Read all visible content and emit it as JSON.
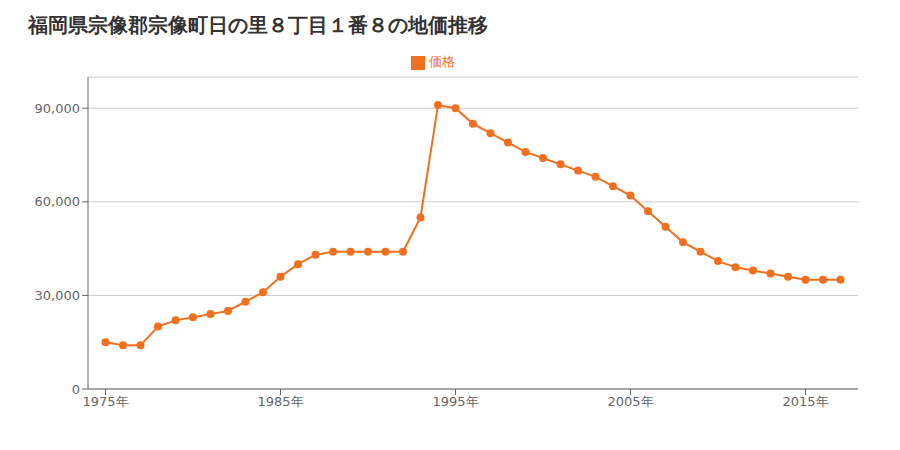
{
  "chart_data": {
    "type": "line",
    "title": "福岡県宗像郡宗像町日の里８丁目１番８の地価推移",
    "x": [
      1975,
      1976,
      1977,
      1978,
      1979,
      1980,
      1981,
      1982,
      1983,
      1984,
      1985,
      1986,
      1987,
      1988,
      1989,
      1990,
      1991,
      1992,
      1993,
      1994,
      1995,
      1996,
      1997,
      1998,
      1999,
      2000,
      2001,
      2002,
      2003,
      2004,
      2005,
      2006,
      2007,
      2008,
      2009,
      2010,
      2011,
      2012,
      2013,
      2014,
      2015,
      2016,
      2017
    ],
    "series": [
      {
        "name": "価格",
        "color": "#f07020",
        "marker": "circle",
        "values": [
          15000,
          14000,
          14000,
          20000,
          22000,
          23000,
          24000,
          25000,
          28000,
          31000,
          36000,
          40000,
          43000,
          44000,
          44000,
          44000,
          44000,
          44000,
          55000,
          91000,
          90000,
          85000,
          82000,
          79000,
          76000,
          74000,
          72000,
          70000,
          68000,
          65000,
          62000,
          57000,
          52000,
          47000,
          44000,
          41000,
          39000,
          38000,
          37000,
          36000,
          35000,
          35000,
          35000
        ]
      }
    ],
    "xlim": [
      1974,
      2018
    ],
    "xticks": [
      {
        "value": 1975,
        "label": "1975年"
      },
      {
        "value": 1985,
        "label": "1985年"
      },
      {
        "value": 1995,
        "label": "1995年"
      },
      {
        "value": 2005,
        "label": "2005年"
      },
      {
        "value": 2015,
        "label": "2015年"
      }
    ],
    "ylim": [
      0,
      100000
    ],
    "yticks": [
      0,
      {
        "value": 30000,
        "label": "30,000"
      },
      {
        "value": 60000,
        "label": "60,000"
      },
      {
        "value": 90000,
        "label": "90,000"
      }
    ],
    "grid": true,
    "legend": "top"
  }
}
